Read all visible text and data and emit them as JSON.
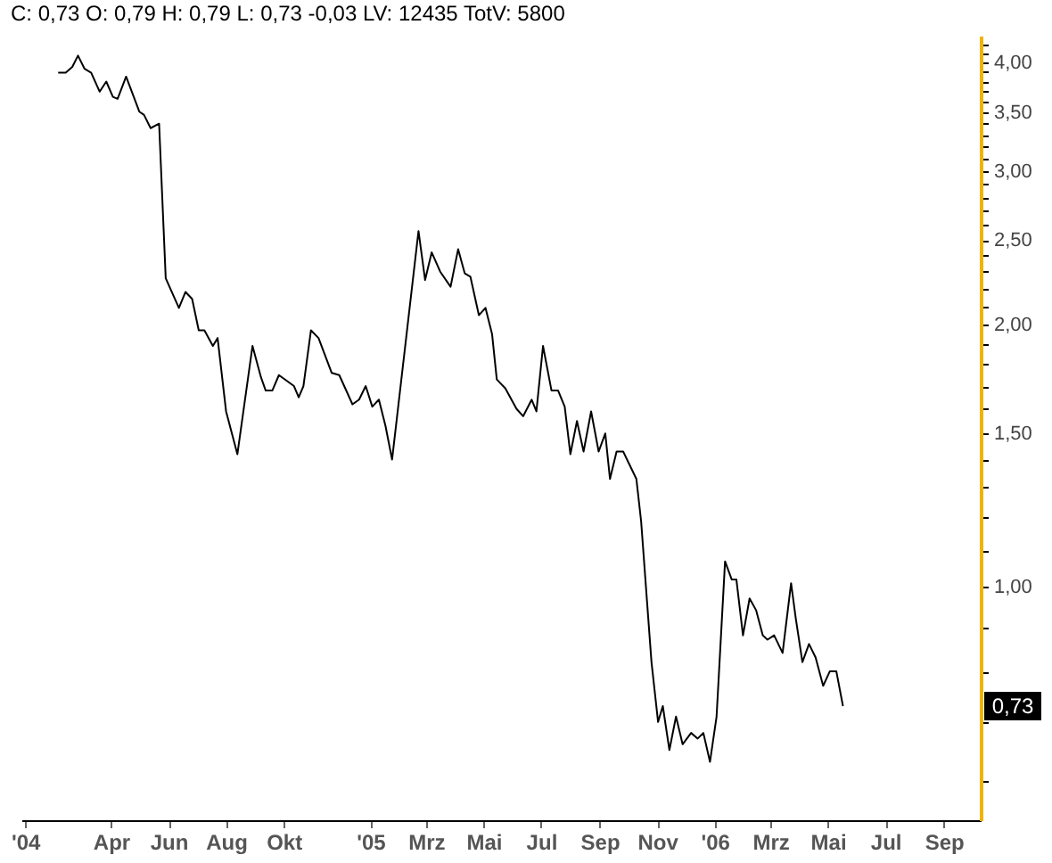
{
  "chart_data": {
    "type": "line",
    "annotations": [
      "C: 0,73 O: 0,79 H: 0,79 L: 0,73 -0,03 LV: 12435 TotV: 5800",
      {
        "text": "0,73",
        "y": 0.73
      }
    ],
    "x": [
      "2004-02-05",
      "2004-02-13",
      "2004-02-20",
      "2004-02-26",
      "2004-03-04",
      "2004-03-11",
      "2004-03-20",
      "2004-03-27",
      "2004-04-03",
      "2004-04-08",
      "2004-04-17",
      "2004-05-01",
      "2004-05-06",
      "2004-05-13",
      "2004-05-22",
      "2004-05-29",
      "2004-06-12",
      "2004-06-19",
      "2004-06-26",
      "2004-07-03",
      "2004-07-09",
      "2004-07-18",
      "2004-07-23",
      "2004-08-01",
      "2004-08-13",
      "2004-08-29",
      "2004-09-07",
      "2004-09-12",
      "2004-09-19",
      "2004-09-26",
      "2004-10-12",
      "2004-10-17",
      "2004-10-22",
      "2004-10-30",
      "2004-11-07",
      "2004-11-21",
      "2004-11-29",
      "2004-12-13",
      "2004-12-20",
      "2004-12-27",
      "2005-01-03",
      "2005-01-10",
      "2005-01-17",
      "2005-01-24",
      "2005-02-21",
      "2005-02-28",
      "2005-03-07",
      "2005-03-16",
      "2005-03-27",
      "2005-04-04",
      "2005-04-11",
      "2005-04-17",
      "2005-04-26",
      "2005-05-03",
      "2005-05-10",
      "2005-05-15",
      "2005-05-24",
      "2005-06-05",
      "2005-06-12",
      "2005-06-21",
      "2005-06-26",
      "2005-07-03",
      "2005-07-12",
      "2005-07-19",
      "2005-07-26",
      "2005-08-01",
      "2005-08-08",
      "2005-08-15",
      "2005-08-23",
      "2005-08-31",
      "2005-09-07",
      "2005-09-12",
      "2005-09-19",
      "2005-09-26",
      "2005-10-10",
      "2005-10-15",
      "2005-10-26",
      "2005-11-02",
      "2005-11-07",
      "2005-11-14",
      "2005-11-21",
      "2005-11-28",
      "2005-12-07",
      "2005-12-14",
      "2005-12-20",
      "2005-12-27",
      "2006-01-03",
      "2006-01-12",
      "2006-01-19",
      "2006-01-24",
      "2006-01-31",
      "2006-02-07",
      "2006-02-14",
      "2006-02-21",
      "2006-02-26",
      "2006-03-05",
      "2006-03-14",
      "2006-03-23",
      "2006-03-28",
      "2006-04-04",
      "2006-04-11",
      "2006-04-18",
      "2006-04-26",
      "2006-05-03",
      "2006-05-10",
      "2006-05-17"
    ],
    "series": [
      {
        "color": "#000000",
        "values": [
          3.89,
          3.89,
          3.95,
          4.07,
          3.93,
          3.89,
          3.7,
          3.8,
          3.65,
          3.63,
          3.85,
          3.51,
          3.48,
          3.36,
          3.4,
          2.26,
          2.09,
          2.18,
          2.14,
          1.97,
          1.97,
          1.89,
          1.93,
          1.59,
          1.42,
          1.89,
          1.74,
          1.68,
          1.68,
          1.75,
          1.7,
          1.65,
          1.7,
          1.97,
          1.93,
          1.76,
          1.75,
          1.62,
          1.64,
          1.7,
          1.61,
          1.64,
          1.53,
          1.4,
          2.56,
          2.25,
          2.42,
          2.3,
          2.21,
          2.44,
          2.29,
          2.27,
          2.05,
          2.09,
          1.95,
          1.73,
          1.69,
          1.6,
          1.57,
          1.64,
          1.59,
          1.89,
          1.68,
          1.68,
          1.61,
          1.42,
          1.55,
          1.43,
          1.59,
          1.43,
          1.5,
          1.33,
          1.43,
          1.43,
          1.33,
          1.19,
          0.82,
          0.7,
          0.73,
          0.65,
          0.71,
          0.66,
          0.68,
          0.67,
          0.68,
          0.63,
          0.71,
          1.07,
          1.02,
          1.02,
          0.88,
          0.97,
          0.94,
          0.88,
          0.87,
          0.88,
          0.84,
          1.01,
          0.92,
          0.82,
          0.86,
          0.83,
          0.77,
          0.8,
          0.8,
          0.73
        ]
      }
    ],
    "log": "y",
    "xlim": [
      "2003-12-28",
      "2006-10-10"
    ],
    "xticks": [
      {
        "value": "2004-01-01",
        "label": "'04"
      },
      {
        "value": "2004-04-01",
        "label": "Apr"
      },
      {
        "value": "2004-06-01",
        "label": "Jun"
      },
      {
        "value": "2004-08-01",
        "label": "Aug"
      },
      {
        "value": "2004-10-01",
        "label": "Okt"
      },
      {
        "value": "2005-01-01",
        "label": "'05"
      },
      {
        "value": "2005-03-01",
        "label": "Mrz"
      },
      {
        "value": "2005-05-01",
        "label": "Mai"
      },
      {
        "value": "2005-07-01",
        "label": "Jul"
      },
      {
        "value": "2005-09-01",
        "label": "Sep"
      },
      {
        "value": "2005-11-01",
        "label": "Nov"
      },
      {
        "value": "2006-01-01",
        "label": "'06"
      },
      {
        "value": "2006-03-01",
        "label": "Mrz"
      },
      {
        "value": "2006-05-01",
        "label": "Mai"
      },
      {
        "value": "2006-07-01",
        "label": "Jul"
      },
      {
        "value": "2006-09-01",
        "label": "Sep"
      }
    ],
    "ylim": [
      0.54,
      4.29
    ],
    "yticks": [
      {
        "value": 0.6,
        "label": null
      },
      {
        "value": 0.7,
        "label": null
      },
      {
        "value": 0.8,
        "label": null
      },
      {
        "value": 0.9,
        "label": null
      },
      {
        "value": 1,
        "label": "1,00"
      },
      {
        "value": 1.1,
        "label": null
      },
      {
        "value": 1.2,
        "label": null
      },
      {
        "value": 1.3,
        "label": null
      },
      {
        "value": 1.4,
        "label": null
      },
      {
        "value": 1.5,
        "label": "1,50"
      },
      {
        "value": 1.6,
        "label": null
      },
      {
        "value": 1.7,
        "label": null
      },
      {
        "value": 1.8,
        "label": null
      },
      {
        "value": 1.9,
        "label": null
      },
      {
        "value": 2,
        "label": "2,00"
      },
      {
        "value": 2.1,
        "label": null
      },
      {
        "value": 2.2,
        "label": null
      },
      {
        "value": 2.3,
        "label": null
      },
      {
        "value": 2.4,
        "label": null
      },
      {
        "value": 2.5,
        "label": "2,50"
      },
      {
        "value": 2.6,
        "label": null
      },
      {
        "value": 2.7,
        "label": null
      },
      {
        "value": 2.8,
        "label": null
      },
      {
        "value": 2.9,
        "label": null
      },
      {
        "value": 3,
        "label": "3,00"
      },
      {
        "value": 3.1,
        "label": null
      },
      {
        "value": 3.2,
        "label": null
      },
      {
        "value": 3.3,
        "label": null
      },
      {
        "value": 3.4,
        "label": null
      },
      {
        "value": 3.5,
        "label": "3,50"
      },
      {
        "value": 3.6,
        "label": null
      },
      {
        "value": 3.7,
        "label": null
      },
      {
        "value": 3.8,
        "label": null
      },
      {
        "value": 3.9,
        "label": null
      },
      {
        "value": 4,
        "label": "4,00"
      },
      {
        "value": 4.1,
        "label": null
      },
      {
        "value": 4.2,
        "label": null
      }
    ],
    "grid": false,
    "marker": "none",
    "line_style": "solid"
  }
}
